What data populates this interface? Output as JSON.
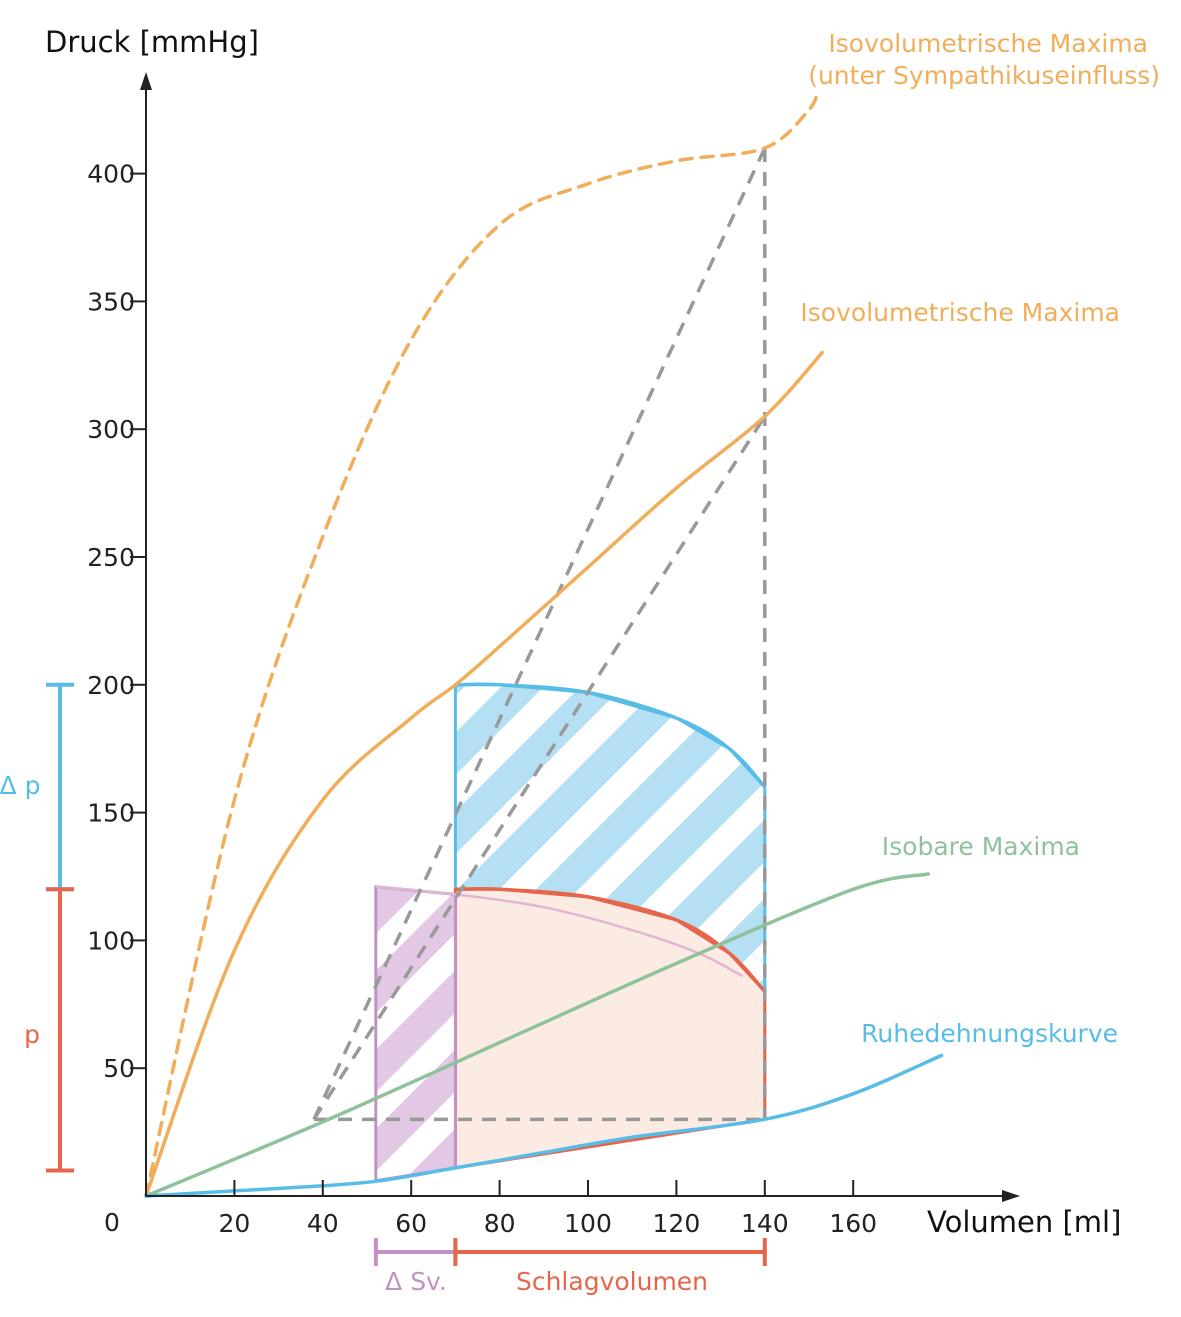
{
  "chart_data": {
    "type": "line",
    "ylabel": "Druck [mmHg]",
    "xlabel": "Volumen [ml]",
    "origin_label": "0",
    "xlim": [
      0,
      200
    ],
    "ylim": [
      0,
      440
    ],
    "x_ticks": [
      20,
      40,
      60,
      80,
      100,
      120,
      140,
      160
    ],
    "y_ticks": [
      50,
      100,
      150,
      200,
      250,
      300,
      350,
      400
    ],
    "grid": false,
    "colors": {
      "orange": "#f0ae5a",
      "blue": "#58bde6",
      "green": "#8fc29a",
      "red": "#e5664a",
      "purple": "#c291c8",
      "gray": "#999999"
    },
    "series": [
      {
        "name": "Isovolumetrische Maxima (unter Sympathikuseinfluss)",
        "style": "dashed",
        "color": "orange",
        "points": [
          [
            0,
            0
          ],
          [
            20,
            155
          ],
          [
            40,
            258
          ],
          [
            60,
            335
          ],
          [
            80,
            380
          ],
          [
            100,
            396
          ],
          [
            120,
            405
          ],
          [
            140,
            410
          ],
          [
            150,
            425
          ],
          [
            152,
            433
          ]
        ]
      },
      {
        "name": "Isovolumetrische Maxima",
        "style": "solid",
        "color": "orange",
        "points": [
          [
            0,
            0
          ],
          [
            20,
            96
          ],
          [
            40,
            155
          ],
          [
            60,
            187
          ],
          [
            70,
            200
          ],
          [
            80,
            215
          ],
          [
            100,
            246
          ],
          [
            120,
            277
          ],
          [
            140,
            305
          ],
          [
            153,
            330
          ]
        ]
      },
      {
        "name": "Isobare Maxima",
        "style": "solid",
        "color": "green",
        "points": [
          [
            0,
            0
          ],
          [
            40,
            29
          ],
          [
            80,
            60
          ],
          [
            120,
            91
          ],
          [
            160,
            120
          ],
          [
            177,
            126
          ]
        ]
      },
      {
        "name": "Ruhedehnungskurve",
        "style": "solid",
        "color": "blue",
        "points": [
          [
            0,
            0
          ],
          [
            20,
            2
          ],
          [
            40,
            4
          ],
          [
            53,
            6
          ],
          [
            70,
            11
          ],
          [
            90,
            17
          ],
          [
            110,
            23
          ],
          [
            140,
            30
          ],
          [
            160,
            40
          ],
          [
            180,
            55
          ]
        ]
      }
    ],
    "areas": [
      {
        "name": "blue-hatched-area",
        "color": "blue",
        "pattern": "hatch",
        "points": [
          [
            70,
            200
          ],
          [
            80,
            200
          ],
          [
            100,
            197
          ],
          [
            120,
            187
          ],
          [
            132,
            175
          ],
          [
            140,
            160
          ],
          [
            140,
            80
          ],
          [
            70,
            120
          ]
        ]
      },
      {
        "name": "red-work-loop",
        "color": "red",
        "pattern": "fill",
        "points": [
          [
            70,
            120
          ],
          [
            80,
            120
          ],
          [
            100,
            117
          ],
          [
            120,
            108
          ],
          [
            132,
            95
          ],
          [
            140,
            80
          ],
          [
            140,
            30
          ],
          [
            70,
            11
          ]
        ]
      },
      {
        "name": "purple-hatched-area",
        "color": "purple",
        "pattern": "hatch",
        "points": [
          [
            52,
            121
          ],
          [
            70,
            118
          ],
          [
            70,
            11
          ],
          [
            52,
            6
          ]
        ]
      }
    ],
    "helper_lines": [
      {
        "name": "dashed-vertical-140",
        "points": [
          [
            140,
            410
          ],
          [
            140,
            30
          ]
        ]
      },
      {
        "name": "dashed-horizontal-30",
        "points": [
          [
            38,
            30
          ],
          [
            140,
            30
          ]
        ]
      },
      {
        "name": "dashed-line-to-sympathetic-max",
        "points": [
          [
            38,
            30
          ],
          [
            140,
            410
          ]
        ]
      },
      {
        "name": "dashed-line-to-normal-max",
        "points": [
          [
            38,
            30
          ],
          [
            140,
            305
          ]
        ]
      }
    ],
    "labels": {
      "sympathetic_line1": "Isovolumetrische Maxima",
      "sympathetic_line2": "(unter Sympathikuseinfluss)",
      "normal": "Isovolumetrische Maxima",
      "isobar": "Isobare Maxima",
      "rest": "Ruhedehnungskurve",
      "delta_p": "Δ p",
      "p": "p",
      "delta_sv": "Δ Sv.",
      "stroke_volume": "Schlagvolumen"
    },
    "brackets": {
      "delta_p": {
        "from": 120,
        "to": 200,
        "color": "blue"
      },
      "p": {
        "from": 10,
        "to": 120,
        "color": "red"
      },
      "delta_sv": {
        "from": 52,
        "to": 70,
        "color": "purple"
      },
      "stroke_volume": {
        "from": 70,
        "to": 140,
        "color": "red"
      }
    }
  }
}
